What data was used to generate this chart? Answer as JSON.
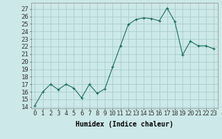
{
  "x": [
    0,
    1,
    2,
    3,
    4,
    5,
    6,
    7,
    8,
    9,
    10,
    11,
    12,
    13,
    14,
    15,
    16,
    17,
    18,
    19,
    20,
    21,
    22,
    23
  ],
  "y": [
    14.2,
    16.0,
    17.0,
    16.3,
    17.0,
    16.5,
    15.2,
    17.0,
    15.8,
    16.4,
    19.3,
    22.1,
    24.9,
    25.6,
    25.8,
    25.7,
    25.4,
    27.1,
    25.3,
    20.9,
    22.7,
    22.1,
    22.1,
    21.7
  ],
  "line_color": "#1a6b5a",
  "marker": "+",
  "marker_size": 3,
  "bg_color": "#cce8e8",
  "grid_color": "#aacccc",
  "xlabel": "Humidex (Indice chaleur)",
  "ylabel_ticks": [
    14,
    15,
    16,
    17,
    18,
    19,
    20,
    21,
    22,
    23,
    24,
    25,
    26,
    27
  ],
  "ylim": [
    13.8,
    27.8
  ],
  "xlim": [
    -0.5,
    23.5
  ],
  "xtick_labels": [
    "0",
    "1",
    "2",
    "3",
    "4",
    "5",
    "6",
    "7",
    "8",
    "9",
    "10",
    "11",
    "12",
    "13",
    "14",
    "15",
    "16",
    "17",
    "18",
    "19",
    "20",
    "21",
    "22",
    "23"
  ],
  "xlabel_fontsize": 7,
  "tick_fontsize": 6.5,
  "linewidth": 0.8
}
